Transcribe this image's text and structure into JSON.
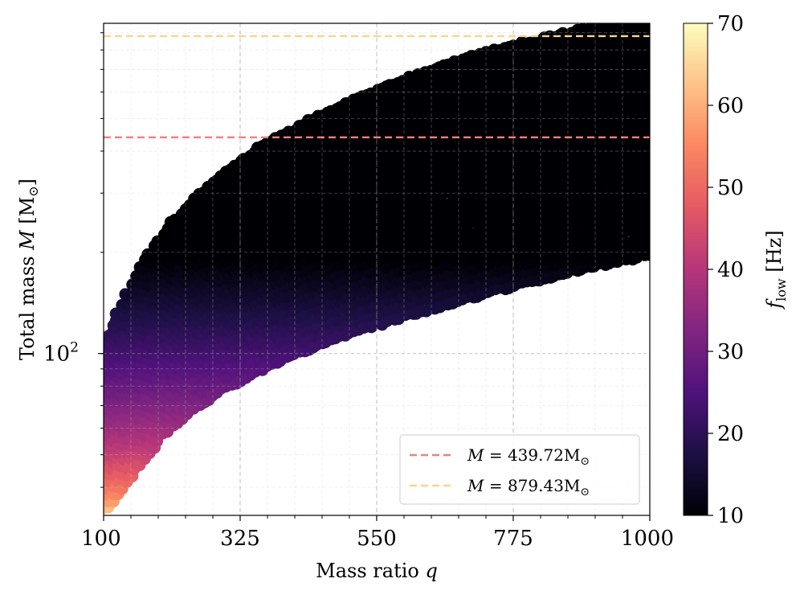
{
  "chart_data": {
    "type": "scatter",
    "title": "",
    "xlabel": "Mass ratio",
    "xlabel_symbol": "q",
    "ylabel": "Total mass",
    "ylabel_symbol": "M",
    "ylabel_unit": "[M",
    "ylabel_unit_sub": "⊙",
    "ylabel_unit_close": "]",
    "xlim": [
      100,
      1000
    ],
    "ylim": [
      33,
      960
    ],
    "yscale": "log",
    "xticks": [
      100,
      325,
      550,
      775,
      1000
    ],
    "xtick_labels": [
      "100",
      "325",
      "550",
      "775",
      "1000"
    ],
    "ytick_labels": [
      {
        "value": 100,
        "base": "10",
        "exp": "2"
      }
    ],
    "grid": true,
    "colorbar": {
      "label_symbol": "f",
      "label_sub": "low",
      "label_unit": "[Hz]",
      "range": [
        10,
        70
      ],
      "ticks": [
        "70",
        "60",
        "50",
        "40",
        "30",
        "20",
        "10"
      ],
      "colormap": [
        "#000004",
        "#1c1044",
        "#4f127b",
        "#812581",
        "#b5367a",
        "#e55964",
        "#fb8761",
        "#fec287",
        "#fcfdbf"
      ]
    },
    "region": {
      "description": "dense scatter of template points",
      "lower_mass_q": [
        100,
        130,
        160,
        200,
        250,
        300,
        350,
        400,
        450,
        500,
        550,
        600,
        650,
        700,
        750,
        800,
        850,
        900,
        950,
        1000
      ],
      "lower_mass_M": [
        33,
        40,
        47,
        58,
        69,
        79,
        88,
        97,
        105,
        114,
        122,
        130,
        138,
        146,
        155,
        163,
        172,
        181,
        189,
        197
      ],
      "upper_mass_q": [
        100,
        130,
        160,
        200,
        250,
        300,
        350,
        400,
        450,
        500,
        550,
        600,
        650,
        700,
        750,
        800,
        850,
        900,
        950,
        1000
      ],
      "upper_mass_M": [
        104,
        140,
        180,
        230,
        288,
        345,
        400,
        452,
        503,
        554,
        605,
        656,
        706,
        756,
        800,
        845,
        885,
        925,
        950,
        960
      ],
      "f_low_at_low_mass": 70,
      "f_low_at_high_mass": 10
    },
    "reference_lines": [
      {
        "label_symbol": "M",
        "label_value": "= 439.72M",
        "label_sub": "⊙",
        "value": 439.72,
        "color": "#f08080"
      },
      {
        "label_symbol": "M",
        "label_value": "= 879.43M",
        "label_sub": "⊙",
        "value": 879.43,
        "color": "#fbd58a"
      }
    ],
    "legend_position": "lower-right"
  }
}
